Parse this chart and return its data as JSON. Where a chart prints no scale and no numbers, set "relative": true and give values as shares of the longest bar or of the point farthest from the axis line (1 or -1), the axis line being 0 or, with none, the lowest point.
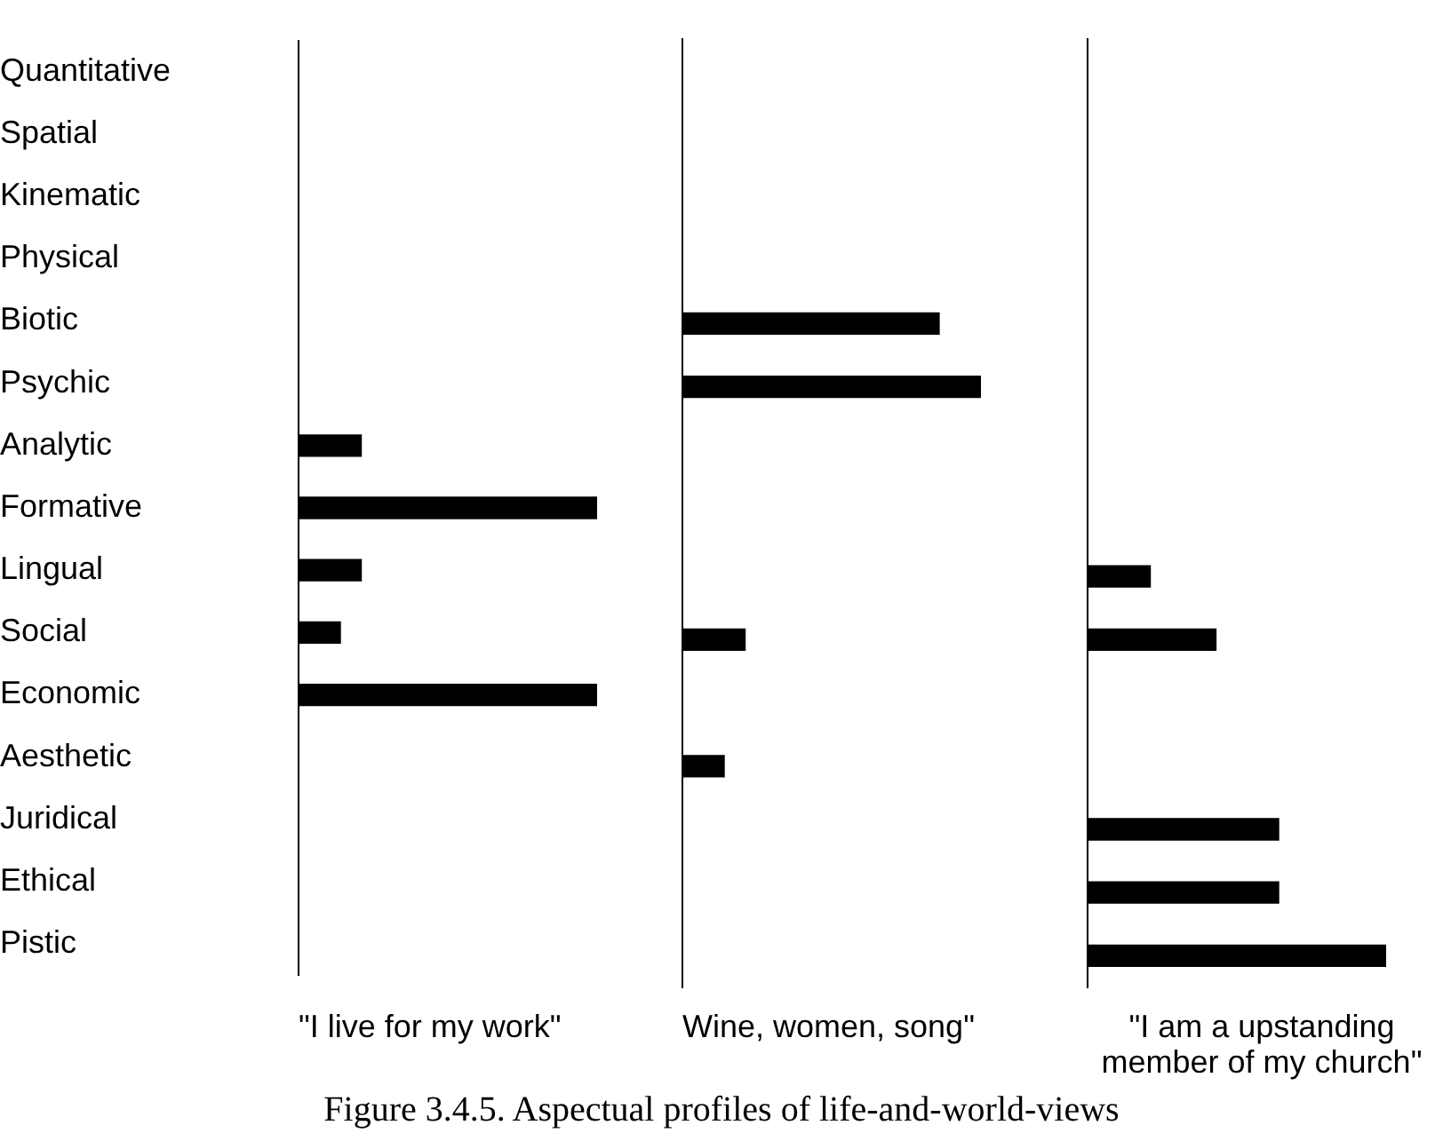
{
  "chart_data": [
    {
      "type": "bar",
      "orientation": "horizontal",
      "relative": true,
      "tick_labels": "y",
      "color": "#000000",
      "xlabel": "\"I live for my work\"",
      "categories": [
        "Quantitative",
        "Spatial",
        "Kinematic",
        "Physical",
        "Biotic",
        "Psychic",
        "Analytic",
        "Formative",
        "Lingual",
        "Social",
        "Economic",
        "Aesthetic",
        "Juridical",
        "Ethical",
        "Pistic"
      ],
      "values": [
        null,
        null,
        null,
        null,
        null,
        null,
        0.21,
        1,
        0.21,
        0.14,
        1,
        null,
        null,
        null,
        null
      ],
      "annotations": [
        "Figure 3.4.5.  Aspectual profiles of life-and-world-views"
      ]
    },
    {
      "type": "bar",
      "orientation": "horizontal",
      "relative": true,
      "tick_labels": false,
      "color": "#000000",
      "xlabel": "Wine, women, song\"",
      "categories": [
        null,
        null,
        null,
        null,
        null,
        null,
        null,
        null,
        null,
        null,
        null,
        null,
        null,
        null,
        null
      ],
      "values": [
        null,
        null,
        null,
        null,
        0.86,
        1,
        null,
        null,
        null,
        0.21,
        null,
        0.14,
        null,
        null,
        null
      ]
    },
    {
      "type": "bar",
      "orientation": "horizontal",
      "relative": true,
      "tick_labels": false,
      "color": "#000000",
      "xlabel": "\"I am a upstanding member of my church\"",
      "categories": [
        null,
        null,
        null,
        null,
        null,
        null,
        null,
        null,
        null,
        null,
        null,
        null,
        null,
        null,
        null
      ],
      "values": [
        null,
        null,
        null,
        null,
        null,
        null,
        null,
        null,
        0.21,
        0.43,
        null,
        null,
        0.64,
        0.64,
        1
      ]
    }
  ]
}
